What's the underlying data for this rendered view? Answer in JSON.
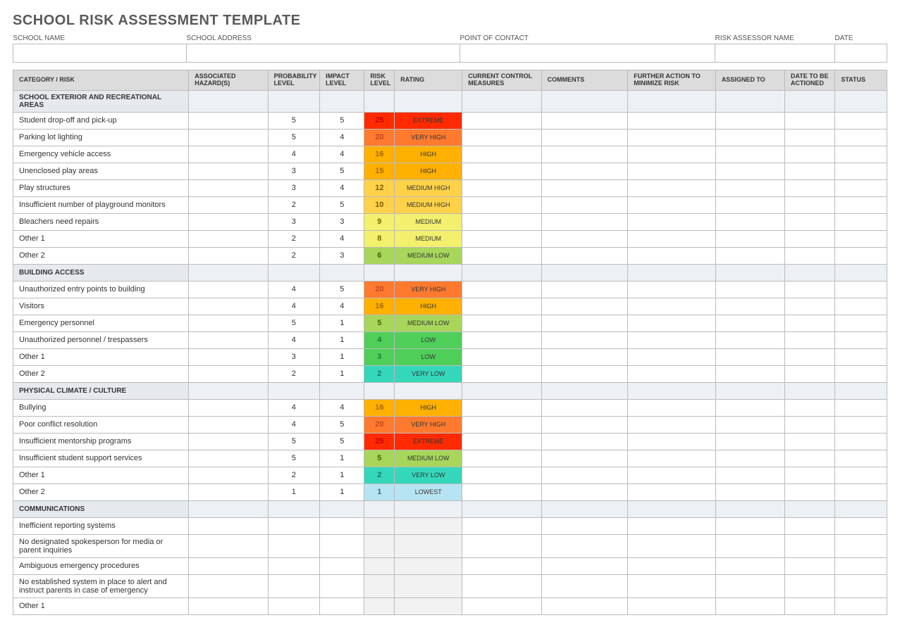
{
  "title": "SCHOOL RISK ASSESSMENT TEMPLATE",
  "info_headers": [
    "SCHOOL NAME",
    "SCHOOL ADDRESS",
    "POINT OF CONTACT",
    "RISK ASSESSOR NAME",
    "DATE"
  ],
  "info_values": [
    "",
    "",
    "",
    "",
    ""
  ],
  "columns": [
    "CATEGORY / RISK",
    "ASSOCIATED HAZARD(S)",
    "PROBABILITY LEVEL",
    "IMPACT LEVEL",
    "RISK LEVEL",
    "RATING",
    "CURRENT CONTROL MEASURES",
    "COMMENTS",
    "FURTHER ACTION TO MINIMIZE RISK",
    "ASSIGNED TO",
    "DATE TO BE ACTIONED",
    "STATUS"
  ],
  "rating_colors": {
    "EXTREME": {
      "bg": "#ff2a00",
      "fg": "#c40000"
    },
    "VERY HIGH": {
      "bg": "#ff7a2f",
      "fg": "#c4461b"
    },
    "HIGH": {
      "bg": "#ffb000",
      "fg": "#a66a00"
    },
    "MEDIUM HIGH": {
      "bg": "#ffd24a",
      "fg": "#7a5a00"
    },
    "MEDIUM": {
      "bg": "#f3f06d",
      "fg": "#6e6a00"
    },
    "MEDIUM LOW": {
      "bg": "#a7d65b",
      "fg": "#3e6600"
    },
    "LOW": {
      "bg": "#4fcf5a",
      "fg": "#1e7a28"
    },
    "VERY LOW": {
      "bg": "#35d7bb",
      "fg": "#0f7a68"
    },
    "LOWEST": {
      "bg": "#b6e4f2",
      "fg": "#2c6d85"
    }
  },
  "sections": [
    {
      "title": "SCHOOL EXTERIOR AND RECREATIONAL AREAS",
      "rows": [
        {
          "name": "Student drop-off and pick-up",
          "prob": 5,
          "impact": 5,
          "risk": 25,
          "rating": "EXTREME"
        },
        {
          "name": "Parking lot lighting",
          "prob": 5,
          "impact": 4,
          "risk": 20,
          "rating": "VERY HIGH"
        },
        {
          "name": "Emergency vehicle access",
          "prob": 4,
          "impact": 4,
          "risk": 16,
          "rating": "HIGH"
        },
        {
          "name": "Unenclosed play areas",
          "prob": 3,
          "impact": 5,
          "risk": 15,
          "rating": "HIGH"
        },
        {
          "name": "Play structures",
          "prob": 3,
          "impact": 4,
          "risk": 12,
          "rating": "MEDIUM HIGH"
        },
        {
          "name": "Insufficient number of playground monitors",
          "prob": 2,
          "impact": 5,
          "risk": 10,
          "rating": "MEDIUM HIGH"
        },
        {
          "name": "Bleachers need repairs",
          "prob": 3,
          "impact": 3,
          "risk": 9,
          "rating": "MEDIUM"
        },
        {
          "name": "Other 1",
          "prob": 2,
          "impact": 4,
          "risk": 8,
          "rating": "MEDIUM"
        },
        {
          "name": "Other 2",
          "prob": 2,
          "impact": 3,
          "risk": 6,
          "rating": "MEDIUM LOW"
        }
      ]
    },
    {
      "title": "BUILDING ACCESS",
      "rows": [
        {
          "name": "Unauthorized entry points to building",
          "prob": 4,
          "impact": 5,
          "risk": 20,
          "rating": "VERY HIGH"
        },
        {
          "name": "Visitors",
          "prob": 4,
          "impact": 4,
          "risk": 16,
          "rating": "HIGH"
        },
        {
          "name": "Emergency personnel",
          "prob": 5,
          "impact": 1,
          "risk": 5,
          "rating": "MEDIUM LOW"
        },
        {
          "name": "Unauthorized personnel / trespassers",
          "prob": 4,
          "impact": 1,
          "risk": 4,
          "rating": "LOW"
        },
        {
          "name": "Other 1",
          "prob": 3,
          "impact": 1,
          "risk": 3,
          "rating": "LOW"
        },
        {
          "name": "Other 2",
          "prob": 2,
          "impact": 1,
          "risk": 2,
          "rating": "VERY LOW"
        }
      ]
    },
    {
      "title": "PHYSICAL CLIMATE / CULTURE",
      "rows": [
        {
          "name": "Bullying",
          "prob": 4,
          "impact": 4,
          "risk": 16,
          "rating": "HIGH"
        },
        {
          "name": "Poor conflict resolution",
          "prob": 4,
          "impact": 5,
          "risk": 20,
          "rating": "VERY HIGH"
        },
        {
          "name": "Insufficient mentorship programs",
          "prob": 5,
          "impact": 5,
          "risk": 25,
          "rating": "EXTREME"
        },
        {
          "name": "Insufficient student support services",
          "prob": 5,
          "impact": 1,
          "risk": 5,
          "rating": "MEDIUM LOW"
        },
        {
          "name": "Other 1",
          "prob": 2,
          "impact": 1,
          "risk": 2,
          "rating": "VERY LOW"
        },
        {
          "name": "Other 2",
          "prob": 1,
          "impact": 1,
          "risk": 1,
          "rating": "LOWEST"
        }
      ]
    },
    {
      "title": "COMMUNICATIONS",
      "rows": [
        {
          "name": "Inefficient reporting systems"
        },
        {
          "name": "No designated spokesperson for media or parent inquiries"
        },
        {
          "name": "Ambiguous emergency procedures"
        },
        {
          "name": "No established system in place to alert and instruct parents in case of emergency"
        },
        {
          "name": "Other 1"
        }
      ]
    }
  ]
}
